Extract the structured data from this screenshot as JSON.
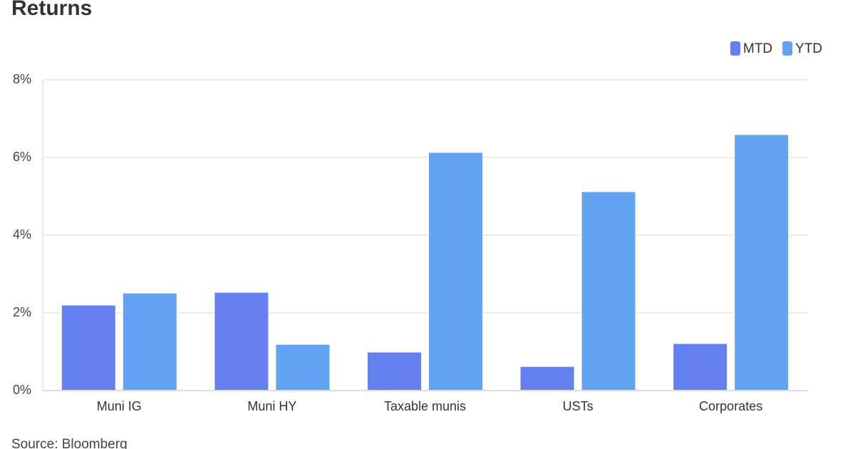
{
  "chart_data": {
    "type": "bar",
    "title": "Returns",
    "source": "Source: Bloomberg",
    "categories": [
      "Muni IG",
      "Muni HY",
      "Taxable munis",
      "USTs",
      "Corporates"
    ],
    "series": [
      {
        "name": "MTD",
        "color": "#6580f0",
        "values": [
          2.2,
          2.53,
          0.99,
          0.62,
          1.21
        ]
      },
      {
        "name": "YTD",
        "color": "#62a4f2",
        "values": [
          2.51,
          1.19,
          6.13,
          5.12,
          6.59
        ]
      }
    ],
    "ylim": [
      0,
      8
    ],
    "yticks": [
      {
        "value": 0,
        "label": "0%"
      },
      {
        "value": 2,
        "label": "2%"
      },
      {
        "value": 4,
        "label": "4%"
      },
      {
        "value": 6,
        "label": "6%"
      },
      {
        "value": 8,
        "label": "8%"
      }
    ],
    "grid": true,
    "legend": "top-right"
  }
}
